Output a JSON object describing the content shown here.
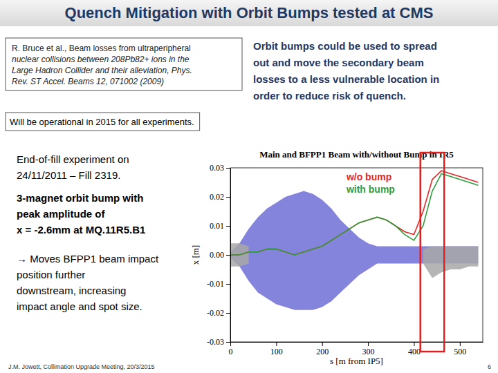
{
  "slide": {
    "title": "Quench Mitigation with Orbit Bumps tested at CMS",
    "reference": [
      "R. Bruce et al., Beam losses from ultraperipheral",
      "nuclear collisions between 208Pb82+ ions in the",
      "Large Hadron Collider and their alleviation, Phys.",
      "Rev. ST Accel. Beams 12, 071002 (2009)"
    ],
    "summary": [
      "Orbit bumps could be used to spread",
      "out and move the secondary beam",
      "losses to a less vulnerable location in",
      "order to reduce risk of quench."
    ],
    "note": "Will be operational in 2015 for all experiments.",
    "experiment": [
      "End-of-fill experiment on",
      "24/11/2011 – Fill 2319."
    ],
    "bump": [
      "3-magnet orbit bump with",
      "peak amplitude of",
      "x = -2.6mm at MQ.11R5.B1"
    ],
    "effect": [
      "→ Moves BFPP1 beam impact",
      "position further",
      "downstream, increasing",
      "impact angle and spot size."
    ],
    "footer": "J.M. Jowett, Collimation Upgrade Meeting, 20/3/2015",
    "page": "6"
  },
  "chart_data": {
    "type": "line",
    "title": "Main and BFPP1 Beam with/without Bump in IR5",
    "x_label": "s [m from IP5]",
    "y_label": "x [m]",
    "x": [
      0,
      20,
      40,
      60,
      80,
      100,
      120,
      140,
      160,
      180,
      200,
      220,
      240,
      260,
      280,
      300,
      320,
      340,
      360,
      380,
      400,
      420,
      440,
      460,
      480,
      500,
      520,
      540
    ],
    "xlim": [
      0,
      550
    ],
    "xticks": [
      0,
      100,
      200,
      300,
      400,
      500
    ],
    "ylim": [
      -0.03,
      0.03
    ],
    "yticks": [
      -0.03,
      -0.02,
      -0.01,
      {
        "value": 0,
        "label": "0.00"
      },
      0.01,
      0.02,
      0.03
    ],
    "bands": [
      {
        "color": "#6e6ed6",
        "upper": [
          0.001,
          0.004,
          0.009,
          0.013,
          0.016,
          0.018,
          0.02,
          0.021,
          0.022,
          0.021,
          0.019,
          0.016,
          0.012,
          0.009,
          0.006,
          0.004,
          0.003,
          0.003,
          0.003,
          0.003,
          0.003,
          0.003,
          0.003,
          0.003,
          0.003,
          0.003,
          0.003,
          0.003
        ],
        "lower": [
          -0.001,
          -0.004,
          -0.009,
          -0.013,
          -0.015,
          -0.017,
          -0.018,
          -0.019,
          -0.019,
          -0.019,
          -0.018,
          -0.016,
          -0.013,
          -0.01,
          -0.007,
          -0.005,
          -0.003,
          -0.003,
          -0.003,
          -0.003,
          -0.003,
          -0.003,
          -0.003,
          -0.003,
          -0.003,
          -0.003,
          -0.003,
          -0.003
        ]
      },
      {
        "color": "#a8a8a8",
        "upper": [
          0.004,
          0.004,
          0.003,
          null,
          null,
          null,
          null,
          null,
          null,
          null,
          null,
          null,
          null,
          null,
          null,
          null,
          null,
          null,
          null,
          null,
          null,
          0.002,
          0.003,
          0.003,
          0.003,
          0.003,
          0.003,
          0.003
        ],
        "lower": [
          -0.004,
          -0.004,
          -0.003,
          null,
          null,
          null,
          null,
          null,
          null,
          null,
          null,
          null,
          null,
          null,
          null,
          null,
          null,
          null,
          null,
          null,
          null,
          -0.003,
          -0.008,
          -0.006,
          -0.005,
          -0.005,
          -0.004,
          -0.004
        ]
      }
    ],
    "series": [
      {
        "name": "w/o bump",
        "color": "#e02828",
        "values": [
          0,
          0,
          0.001,
          0.001,
          0.002,
          0.002,
          0.001,
          0,
          0.001,
          0.002,
          0.003,
          0.005,
          0.007,
          0.009,
          0.011,
          0.012,
          0.013,
          0.012,
          0.01,
          0.008,
          0.007,
          0.015,
          0.026,
          0.029,
          0.028,
          0.027,
          0.026,
          0.025
        ]
      },
      {
        "name": "with bump",
        "color": "#2f9e3a",
        "values": [
          0,
          0,
          0.001,
          0.001,
          0.002,
          0.002,
          0.001,
          0,
          0.001,
          0.002,
          0.003,
          0.005,
          0.007,
          0.009,
          0.011,
          0.012,
          0.013,
          0.012,
          0.01,
          0.007,
          0.005,
          0.01,
          0.022,
          0.028,
          0.027,
          0.026,
          0.025,
          0.024
        ]
      }
    ],
    "highlight": [
      414,
      466
    ],
    "legend": "top"
  }
}
